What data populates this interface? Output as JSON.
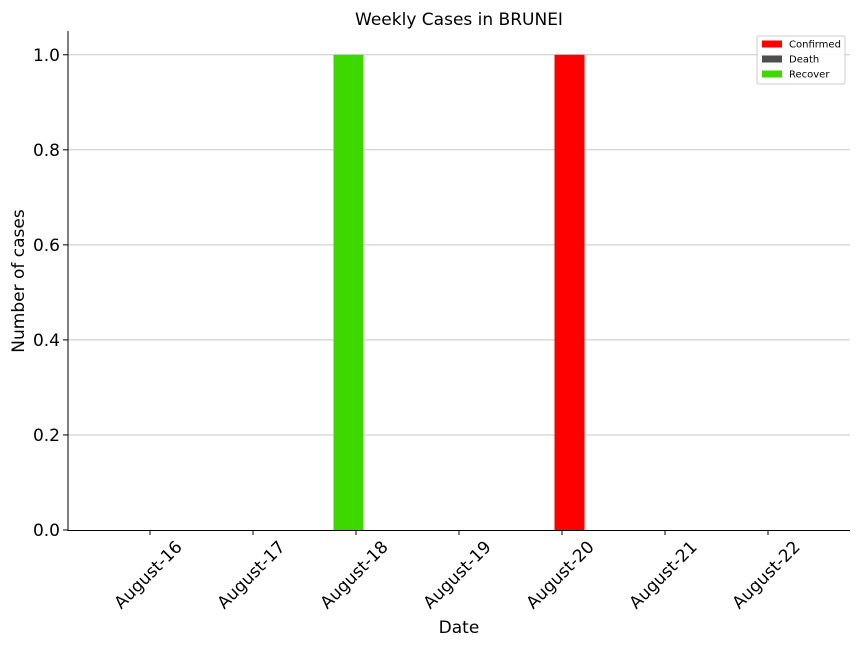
{
  "chart_data": {
    "type": "bar",
    "title": "Weekly Cases in BRUNEI",
    "xlabel": "Date",
    "ylabel": "Number of cases",
    "categories": [
      "August-16",
      "August-17",
      "August-18",
      "August-19",
      "August-20",
      "August-21",
      "August-22"
    ],
    "series": [
      {
        "name": "Confirmed",
        "color": "#ff0000",
        "values": [
          0,
          0,
          0,
          0,
          1,
          0,
          0
        ]
      },
      {
        "name": "Death",
        "color": "#4d4d4d",
        "values": [
          0,
          0,
          0,
          0,
          0,
          0,
          0
        ]
      },
      {
        "name": "Recover",
        "color": "#3ed800",
        "values": [
          0,
          0,
          1,
          0,
          0,
          0,
          0
        ]
      }
    ],
    "ylim": [
      0,
      1.05
    ],
    "yticks": [
      "0.0",
      "0.2",
      "0.4",
      "0.6",
      "0.8",
      "1.0"
    ],
    "grid": "horizontal",
    "legend_position": "top-right"
  }
}
